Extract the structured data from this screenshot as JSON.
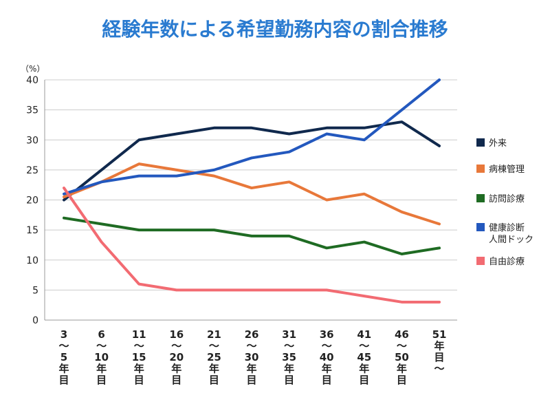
{
  "chart_data": {
    "type": "line",
    "title": "経験年数による希望勤務内容の割合推移",
    "ylabel": "（%）",
    "ylim": [
      0,
      40
    ],
    "yticks": [
      0,
      5,
      10,
      15,
      20,
      25,
      30,
      35,
      40
    ],
    "grid": true,
    "legend_position": "right",
    "categories": [
      [
        "3",
        "〜",
        "5",
        "年",
        "目"
      ],
      [
        "6",
        "〜",
        "10",
        "年",
        "目"
      ],
      [
        "11",
        "〜",
        "15",
        "年",
        "目"
      ],
      [
        "16",
        "〜",
        "20",
        "年",
        "目"
      ],
      [
        "21",
        "〜",
        "25",
        "年",
        "目"
      ],
      [
        "26",
        "〜",
        "30",
        "年",
        "目"
      ],
      [
        "31",
        "〜",
        "35",
        "年",
        "目"
      ],
      [
        "36",
        "〜",
        "40",
        "年",
        "目"
      ],
      [
        "41",
        "〜",
        "45",
        "年",
        "目"
      ],
      [
        "46",
        "〜",
        "50",
        "年",
        "目"
      ],
      [
        "51",
        "年",
        "目",
        "〜"
      ]
    ],
    "series": [
      {
        "name": [
          "外来"
        ],
        "color": "#10294d",
        "values": [
          20,
          25,
          30,
          31,
          32,
          32,
          31,
          32,
          32,
          33,
          29
        ]
      },
      {
        "name": [
          "病棟管理"
        ],
        "color": "#e8783a",
        "values": [
          20.5,
          23,
          26,
          25,
          24,
          22,
          23,
          20,
          21,
          18,
          16
        ]
      },
      {
        "name": [
          "訪問診療"
        ],
        "color": "#1f6b23",
        "values": [
          17,
          16,
          15,
          15,
          15,
          14,
          14,
          12,
          13,
          11,
          12
        ]
      },
      {
        "name": [
          "健康診断",
          "人間ドック"
        ],
        "color": "#2358be",
        "values": [
          21,
          23,
          24,
          24,
          25,
          27,
          28,
          31,
          30,
          35,
          40
        ]
      },
      {
        "name": [
          "自由診療"
        ],
        "color": "#f26b72",
        "values": [
          22,
          13,
          6,
          5,
          5,
          5,
          5,
          5,
          4,
          3,
          3
        ]
      }
    ]
  }
}
